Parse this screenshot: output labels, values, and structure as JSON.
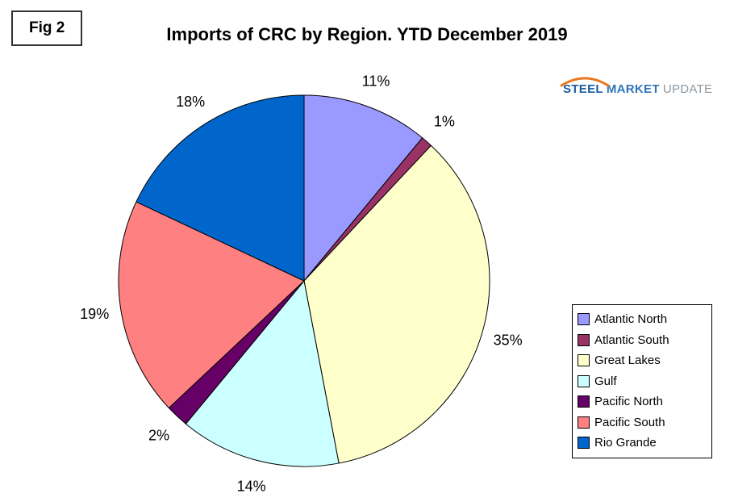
{
  "figure_label": "Fig 2",
  "logo": {
    "steel": "STEEL",
    "market": "MARKET",
    "update": "UPDATE",
    "steel_color": "#1A5E9E",
    "market_color": "#2E75B6",
    "update_color": "#8C97A0",
    "swoosh_color": "#E87722"
  },
  "chart_data": {
    "type": "pie",
    "title": "Imports of CRC by Region. YTD December 2019",
    "start_angle_deg": 0,
    "direction": "clockwise",
    "legend_position": "right",
    "slices": [
      {
        "label": "Atlantic North",
        "value": 11,
        "display": "11%",
        "color": "#9999FF"
      },
      {
        "label": "Atlantic South",
        "value": 1,
        "display": "1%",
        "color": "#993366"
      },
      {
        "label": "Great Lakes",
        "value": 35,
        "display": "35%",
        "color": "#FFFFCC"
      },
      {
        "label": "Gulf",
        "value": 14,
        "display": "14%",
        "color": "#CCFFFF"
      },
      {
        "label": "Pacific North",
        "value": 2,
        "display": "2%",
        "color": "#660066"
      },
      {
        "label": "Pacific South",
        "value": 19,
        "display": "19%",
        "color": "#FF8080"
      },
      {
        "label": "Rio Grande",
        "value": 18,
        "display": "18%",
        "color": "#0066CC"
      }
    ]
  }
}
